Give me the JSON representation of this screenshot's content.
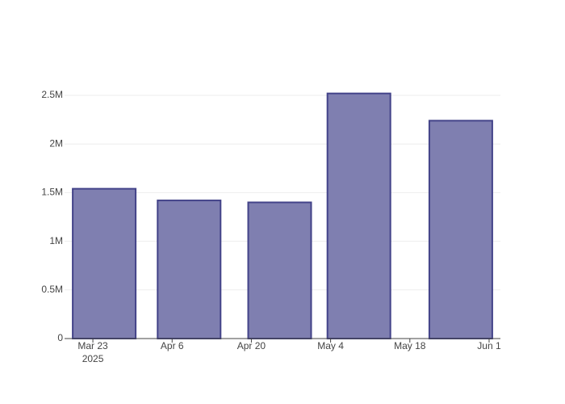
{
  "chart_data": {
    "type": "bar",
    "x": [
      "2025-03-25",
      "2025-04-09",
      "2025-04-25",
      "2025-05-09",
      "2025-05-27"
    ],
    "values": [
      1540000,
      1420000,
      1400000,
      2520000,
      2240000
    ],
    "color": "#7f7fb0",
    "line_color": "#434389",
    "xlim": [
      "2025-03-18",
      "2025-06-03"
    ],
    "xticks": [
      {
        "value": "2025-03-23",
        "label": "Mar 23"
      },
      {
        "value": "2025-04-06",
        "label": "Apr 6"
      },
      {
        "value": "2025-04-20",
        "label": "Apr 20"
      },
      {
        "value": "2025-05-04",
        "label": "May 4"
      },
      {
        "value": "2025-05-18",
        "label": "May 18"
      },
      {
        "value": "2025-06-01",
        "label": "Jun 1"
      }
    ],
    "x_axis_year": "2025",
    "ylim": [
      0,
      2650000
    ],
    "yticks": [
      0,
      {
        "value": 500000,
        "label": "0.5M"
      },
      {
        "value": 1000000,
        "label": "1M"
      },
      {
        "value": 1500000,
        "label": "1.5M"
      },
      {
        "value": 2000000,
        "label": "2M"
      },
      {
        "value": 2500000,
        "label": "2.5M"
      }
    ],
    "grid": true
  }
}
